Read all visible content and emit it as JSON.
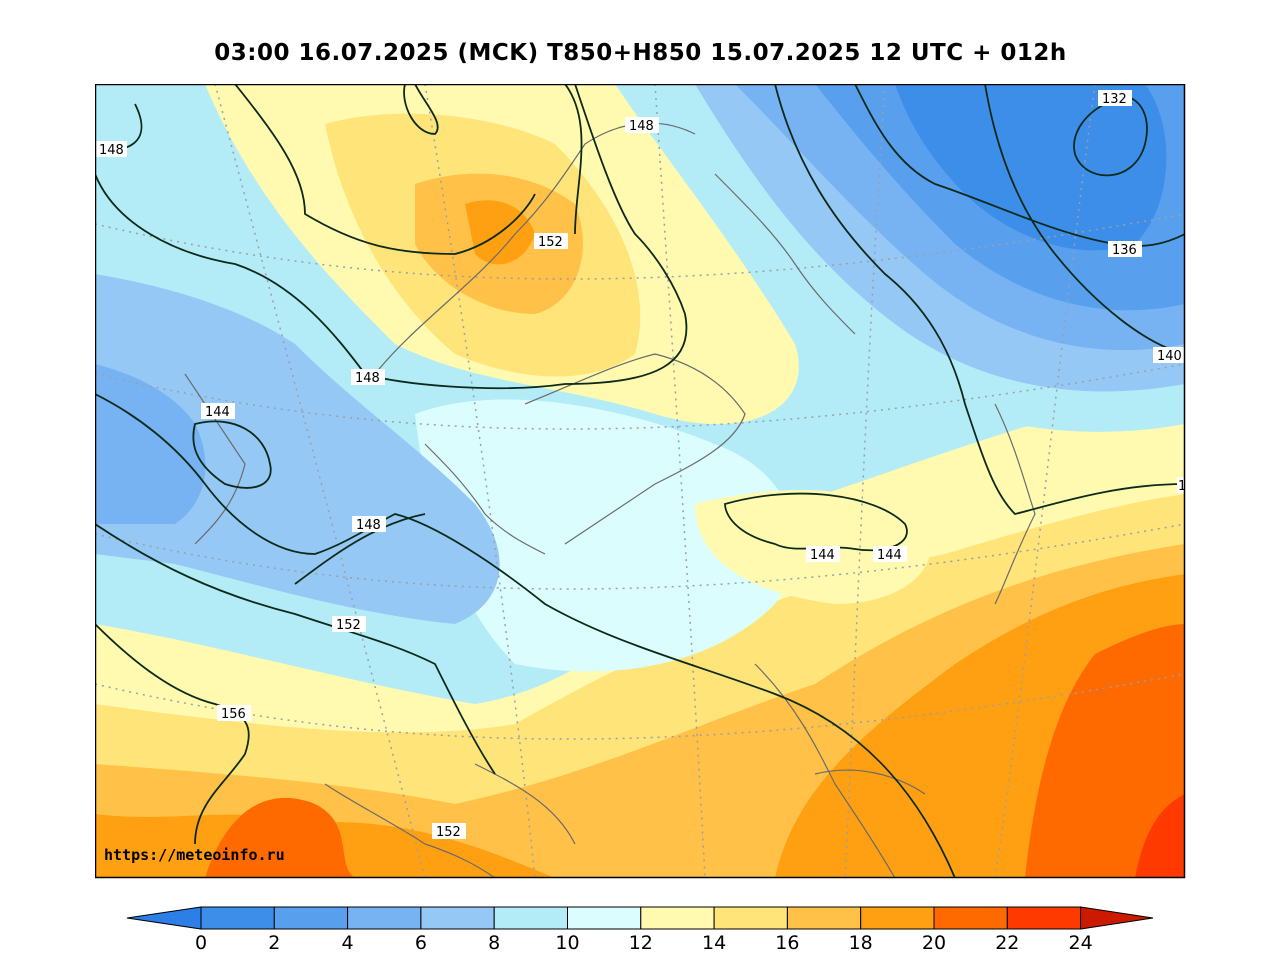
{
  "title": "03:00 16.07.2025 (MCK) T850+H850 15.07.2025 12 UTC + 012h",
  "source_url": "https://meteoinfo.ru",
  "colorbar": {
    "ticks": [
      "0",
      "2",
      "4",
      "6",
      "8",
      "10",
      "12",
      "14",
      "16",
      "18",
      "20",
      "22",
      "24"
    ],
    "under_color": "#2b7fe6",
    "over_color": "#cc1a00",
    "colors": [
      "#3d8ee8",
      "#58a0ee",
      "#77b3f2",
      "#96c8f6",
      "#b3ecf7",
      "#dcfdfd",
      "#fffab0",
      "#ffe47a",
      "#ffc148",
      "#ffa012",
      "#ff6a00",
      "#ff3a00"
    ]
  },
  "contour_labels": [
    {
      "id": "c1",
      "text": "148"
    },
    {
      "id": "c2",
      "text": "148"
    },
    {
      "id": "c3",
      "text": "152"
    },
    {
      "id": "c4",
      "text": "132"
    },
    {
      "id": "c5",
      "text": "136"
    },
    {
      "id": "c6",
      "text": "140"
    },
    {
      "id": "c7",
      "text": "148"
    },
    {
      "id": "c8",
      "text": "144"
    },
    {
      "id": "c9",
      "text": "148"
    },
    {
      "id": "c10",
      "text": "144"
    },
    {
      "id": "c11",
      "text": "144"
    },
    {
      "id": "c12",
      "text": "152"
    },
    {
      "id": "c13",
      "text": "156"
    },
    {
      "id": "c14",
      "text": "152"
    },
    {
      "id": "c15",
      "text": "1"
    }
  ]
}
